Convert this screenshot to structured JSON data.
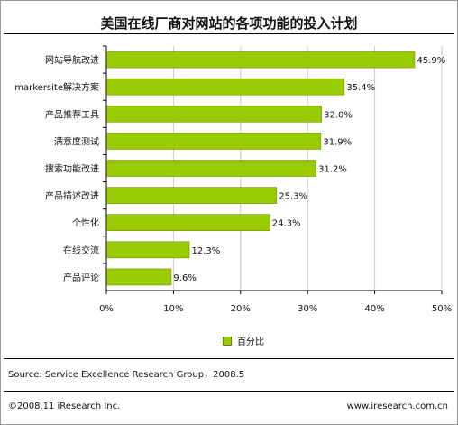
{
  "chart_data": {
    "type": "bar",
    "orientation": "horizontal",
    "title": "美国在线厂商对网站的各项功能的投入计划",
    "categories": [
      "网站导航改进",
      "markersite解决方案",
      "产品推荐工具",
      "满意度测试",
      "搜索功能改进",
      "产品描述改进",
      "个性化",
      "在线交流",
      "产品评论"
    ],
    "values": [
      45.9,
      35.4,
      32.0,
      31.9,
      31.2,
      25.3,
      24.3,
      12.3,
      9.6
    ],
    "data_labels": [
      "45.9%",
      "35.4%",
      "32.0%",
      "31.9%",
      "31.2%",
      "25.3%",
      "24.3%",
      "12.3%",
      "9.6%"
    ],
    "series": [
      {
        "name": "百分比",
        "values": [
          45.9,
          35.4,
          32.0,
          31.9,
          31.2,
          25.3,
          24.3,
          12.3,
          9.6
        ]
      }
    ],
    "xlim": [
      0,
      50
    ],
    "xticks": [
      "0%",
      "10%",
      "20%",
      "30%",
      "40%",
      "50%"
    ],
    "grid": true,
    "legend_position": "bottom",
    "bar_color": "#99cc00"
  },
  "source": "Source: Service Excellence Research Group，2008.5",
  "copyright": "©2008.11 iResearch Inc.",
  "website": "www.iresearch.com.cn"
}
